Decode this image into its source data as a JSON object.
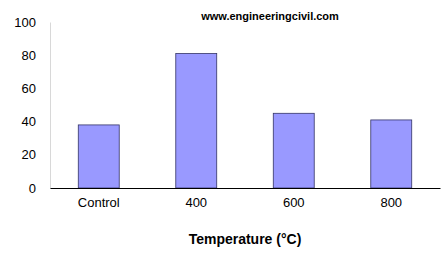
{
  "chart_data": {
    "type": "bar",
    "annotations": [
      "www.engineeringcivil.com"
    ],
    "x_label": "Temperature (°C)",
    "categories": [
      "Control",
      "400",
      "600",
      "800"
    ],
    "values": [
      38,
      81,
      45,
      41
    ],
    "color": "#9999ff",
    "ylim": [
      0,
      100
    ],
    "yticks": [
      0,
      20,
      40,
      60,
      80,
      100
    ],
    "grid": false
  }
}
